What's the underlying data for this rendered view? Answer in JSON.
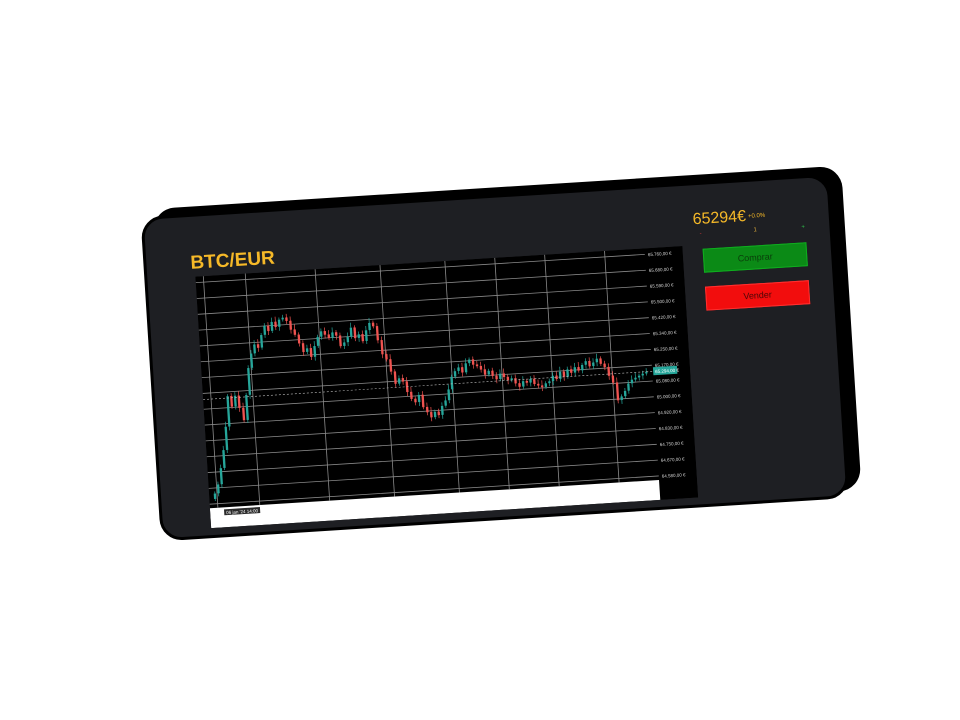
{
  "header": {
    "pair": "BTC/EUR"
  },
  "ticker": {
    "price": "65294€",
    "change": "+0.0%"
  },
  "order": {
    "qty_minus": "-",
    "qty_value": "1",
    "qty_plus": "+",
    "buy_label": "Comprar",
    "sell_label": "Vender"
  },
  "colors": {
    "accent": "#f6b928",
    "up": "#26a69a",
    "down": "#ef5350",
    "buy": "#0b8a16",
    "sell": "#f20d0d",
    "bg": "#1e1f23"
  },
  "chart_data": {
    "type": "candlestick",
    "ylim": [
      64500,
      65800
    ],
    "y_ticks": [
      "65.760,00 €",
      "65.680,00 €",
      "65.590,00 €",
      "65.500,00 €",
      "65.420,00 €",
      "65.340,00 €",
      "65.250,00 €",
      "65.170,00 €",
      "65.080,00 €",
      "65.000,00 €",
      "64.920,00 €",
      "64.830,00 €",
      "64.750,00 €",
      "64.670,00 €",
      "64.580,00 €"
    ],
    "price_line_label": "65.294,00 €",
    "x_label": "06 jan '24  14:00",
    "close": [
      64580,
      64630,
      64720,
      64820,
      64950,
      65120,
      65060,
      65120,
      65050,
      64980,
      65120,
      65270,
      65350,
      65400,
      65380,
      65450,
      65500,
      65470,
      65520,
      65490,
      65530,
      65540,
      65520,
      65470,
      65440,
      65390,
      65340,
      65360,
      65310,
      65370,
      65420,
      65450,
      65430,
      65410,
      65440,
      65420,
      65360,
      65380,
      65410,
      65460,
      65400,
      65420,
      65380,
      65440,
      65480,
      65460,
      65380,
      65300,
      65270,
      65200,
      65130,
      65160,
      65140,
      65080,
      65040,
      65020,
      65060,
      64990,
      64960,
      64930,
      64960,
      64940,
      64990,
      65020,
      65080,
      65150,
      65180,
      65200,
      65170,
      65220,
      65240,
      65210,
      65200,
      65180,
      65150,
      65170,
      65140,
      65120,
      65150,
      65130,
      65110,
      65120,
      65090,
      65070,
      65100,
      65090,
      65110,
      65080,
      65070,
      65060,
      65080,
      65090,
      65120,
      65100,
      65140,
      65110,
      65150,
      65130,
      65160,
      65140,
      65170,
      65190,
      65160,
      65180,
      65200,
      65170,
      65150,
      65100,
      65060,
      64960,
      64980,
      65010,
      65050,
      65070,
      65080,
      65090,
      65100,
      65110
    ]
  }
}
